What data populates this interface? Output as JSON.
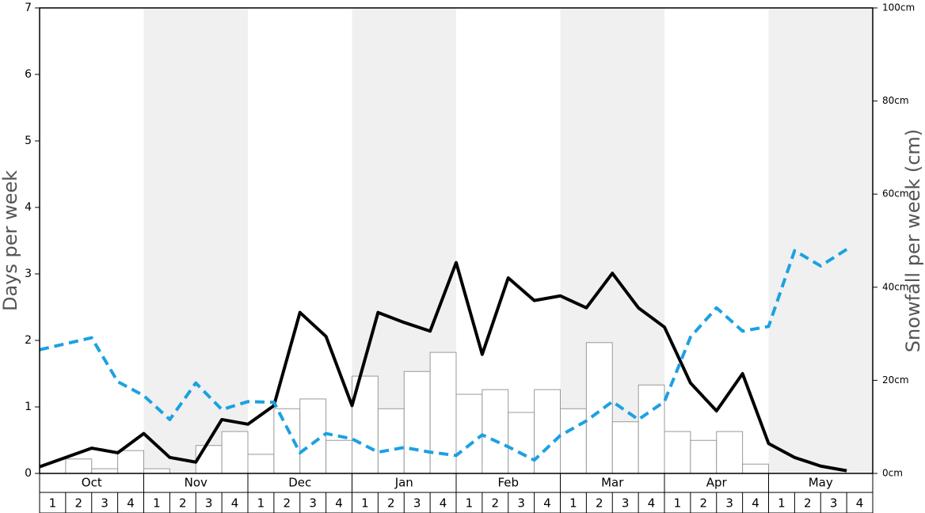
{
  "chart_data": {
    "type": "combo",
    "y_label": "Days per week",
    "y2_label": "Snowfall per week (cm)",
    "months": [
      "Oct",
      "Nov",
      "Dec",
      "Jan",
      "Feb",
      "Mar",
      "Apr",
      "May"
    ],
    "weeks": [
      1,
      2,
      3,
      4
    ],
    "ylim": [
      0,
      7
    ],
    "yticks": [
      0,
      1,
      2,
      3,
      4,
      5,
      6,
      7
    ],
    "y2lim": [
      0,
      100
    ],
    "y2ticks": [
      {
        "value": 0,
        "label": "0cm"
      },
      {
        "value": 20,
        "label": "20cm"
      },
      {
        "value": 40,
        "label": "40cm"
      },
      {
        "value": 60,
        "label": "60cm"
      },
      {
        "value": 80,
        "label": "80cm"
      },
      {
        "value": 100,
        "label": "100cm"
      }
    ],
    "series": [
      {
        "type": "bar",
        "axis": "y2",
        "color": "#ffffff",
        "stroke": "#999999",
        "values": [
          0,
          3.1,
          1.0,
          4.9,
          1.0,
          0,
          6.0,
          9.0,
          4.1,
          13.9,
          16.0,
          7.1,
          20.9,
          13.9,
          21.9,
          26.0,
          17.0,
          18.0,
          13.1,
          18.0,
          13.9,
          28.1,
          11.1,
          19.0,
          9.0,
          7.1,
          9.0,
          2.0,
          0,
          0,
          0,
          0
        ]
      },
      {
        "type": "line",
        "color": "#000000",
        "dashed": false,
        "values": [
          0.1,
          0.24,
          0.38,
          0.31,
          0.6,
          0.24,
          0.17,
          0.81,
          0.74,
          1.02,
          2.42,
          2.06,
          1.02,
          2.42,
          2.27,
          2.14,
          3.17,
          1.79,
          2.94,
          2.6,
          2.67,
          2.49,
          3.01,
          2.49,
          2.2,
          1.36,
          0.94,
          1.5,
          0.45,
          0.24,
          0.11,
          0.04
        ]
      },
      {
        "type": "line",
        "color": "#1ba1e2",
        "dashed": true,
        "values": [
          1.86,
          1.95,
          2.04,
          1.38,
          1.17,
          0.81,
          1.36,
          0.96,
          1.08,
          1.07,
          0.31,
          0.6,
          0.52,
          0.32,
          0.39,
          0.32,
          0.27,
          0.58,
          0.4,
          0.2,
          0.57,
          0.79,
          1.08,
          0.81,
          1.08,
          2.05,
          2.49,
          2.14,
          2.21,
          3.35,
          3.12,
          3.37
        ]
      }
    ]
  }
}
